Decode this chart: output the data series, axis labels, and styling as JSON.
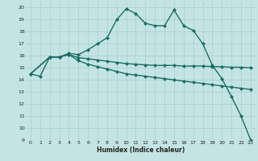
{
  "bg_color": "#c4e4e4",
  "grid_color": "#aacccc",
  "line_color": "#1a6e62",
  "line_width": 1.0,
  "marker": "D",
  "marker_size": 2.5,
  "xlabel": "Humidex (Indice chaleur)",
  "ylim": [
    9,
    20.5
  ],
  "xlim": [
    -0.5,
    23.5
  ],
  "yticks": [
    9,
    10,
    11,
    12,
    13,
    14,
    15,
    16,
    17,
    18,
    19,
    20
  ],
  "xticks": [
    0,
    1,
    2,
    3,
    4,
    5,
    6,
    7,
    8,
    9,
    10,
    11,
    12,
    13,
    14,
    15,
    16,
    17,
    18,
    19,
    20,
    21,
    22,
    23
  ],
  "series": [
    {
      "x": [
        0,
        1,
        2,
        3,
        4,
        5,
        6,
        7,
        8,
        9,
        10,
        11,
        12,
        13,
        14,
        15,
        16,
        17,
        18,
        19,
        20,
        21,
        22,
        23
      ],
      "y": [
        14.5,
        14.3,
        15.9,
        15.9,
        16.2,
        16.1,
        16.5,
        17.0,
        17.5,
        19.0,
        19.9,
        19.5,
        18.7,
        18.5,
        18.5,
        19.8,
        18.5,
        18.1,
        17.0,
        15.2,
        14.1,
        12.6,
        11.0,
        9.0
      ]
    },
    {
      "x": [
        0,
        2,
        3,
        4,
        5,
        6,
        7,
        8,
        9,
        10,
        11,
        12,
        13,
        14,
        15,
        16,
        17,
        18,
        19,
        20,
        21,
        22,
        23
      ],
      "y": [
        14.5,
        15.9,
        15.9,
        16.1,
        15.85,
        15.75,
        15.65,
        15.55,
        15.45,
        15.35,
        15.3,
        15.25,
        15.2,
        15.2,
        15.2,
        15.15,
        15.15,
        15.15,
        15.1,
        15.1,
        15.05,
        15.05,
        15.0
      ]
    },
    {
      "x": [
        0,
        2,
        3,
        4,
        5,
        6,
        7,
        8,
        9,
        10,
        11,
        12,
        13,
        14,
        15,
        16,
        17,
        18,
        19,
        20,
        21,
        22,
        23
      ],
      "y": [
        14.5,
        15.9,
        15.9,
        16.1,
        15.6,
        15.3,
        15.1,
        14.9,
        14.7,
        14.5,
        14.4,
        14.3,
        14.2,
        14.1,
        14.0,
        13.9,
        13.8,
        13.7,
        13.6,
        13.5,
        13.4,
        13.3,
        13.2
      ]
    }
  ]
}
